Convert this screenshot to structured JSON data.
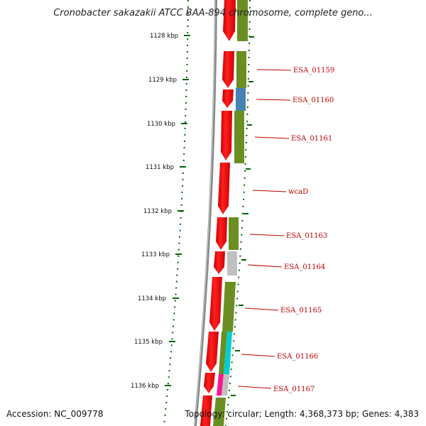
{
  "title": "Cronobacter sakazakii ATCC BAA-894 chromosome, complete geno...",
  "footer": {
    "accession": "Accession: NC_009778",
    "summary": "Topology: circular; Length: 4,368,373 bp; Genes: 4,383"
  },
  "scale_ticks": [
    {
      "label": "1128 kbp",
      "kbp": 1128
    },
    {
      "label": "1129 kbp",
      "kbp": 1129
    },
    {
      "label": "1130 kbp",
      "kbp": 1130
    },
    {
      "label": "1131 kbp",
      "kbp": 1131
    },
    {
      "label": "1132 kbp",
      "kbp": 1132
    },
    {
      "label": "1133 kbp",
      "kbp": 1133
    },
    {
      "label": "1134 kbp",
      "kbp": 1134
    },
    {
      "label": "1135 kbp",
      "kbp": 1135
    },
    {
      "label": "1136 kbp",
      "kbp": 1136
    }
  ],
  "gene_labels": [
    {
      "name": "ESA_01159"
    },
    {
      "name": "ESA_01160"
    },
    {
      "name": "ESA_01161"
    },
    {
      "name": "wcaD"
    },
    {
      "name": "ESA_01163"
    },
    {
      "name": "ESA_01164"
    },
    {
      "name": "ESA_01165"
    },
    {
      "name": "ESA_01166"
    },
    {
      "name": "ESA_01167"
    }
  ],
  "colors": {
    "cds": "#ff0000",
    "cog_green": "#6b8e23",
    "cog_blue": "#4682b4",
    "cog_grey": "#c0c0c0",
    "cog_cyan": "#00ced1",
    "cog_magenta": "#ff1493",
    "tick": "#006400",
    "backbone": "#808080",
    "label": "#c00000"
  }
}
